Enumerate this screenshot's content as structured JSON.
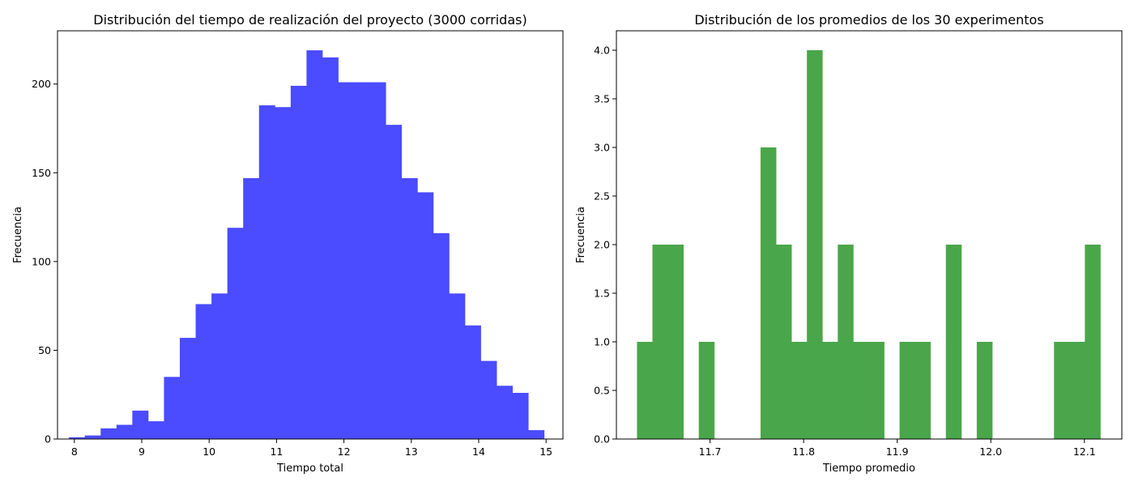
{
  "chart_data": [
    {
      "type": "bar",
      "title": "Distribución del tiempo de realización del proyecto (3000 corridas)",
      "xlabel": "Tiempo total",
      "ylabel": "Frecuencia",
      "xlim": [
        7.75,
        15.25
      ],
      "ylim": [
        0,
        230
      ],
      "bar_color": "#4b4bff",
      "bin_edges": [
        7.92,
        8.155,
        8.39,
        8.625,
        8.86,
        9.095,
        9.33,
        9.565,
        9.8,
        10.035,
        10.27,
        10.505,
        10.74,
        10.975,
        11.21,
        11.445,
        11.68,
        11.915,
        12.15,
        12.385,
        12.62,
        12.855,
        13.09,
        13.325,
        13.56,
        13.795,
        14.03,
        14.265,
        14.5,
        14.735,
        14.97
      ],
      "values": [
        1,
        2,
        6,
        8,
        16,
        10,
        35,
        57,
        76,
        82,
        119,
        147,
        188,
        187,
        199,
        219,
        215,
        201,
        201,
        201,
        177,
        147,
        139,
        116,
        82,
        64,
        44,
        30,
        26,
        5
      ],
      "xticks": [
        8,
        9,
        10,
        11,
        12,
        13,
        14,
        15
      ],
      "xtick_labels": [
        "8",
        "9",
        "10",
        "11",
        "12",
        "13",
        "14",
        "15"
      ],
      "yticks": [
        0,
        50,
        100,
        150,
        200
      ],
      "ytick_labels": [
        "0",
        "50",
        "100",
        "150",
        "200"
      ],
      "grid": false
    },
    {
      "type": "bar",
      "title": "Distribución de los promedios de los 30 experimentos",
      "xlabel": "Tiempo promedio",
      "ylabel": "Frecuencia",
      "xlim": [
        11.6,
        12.14
      ],
      "ylim": [
        0,
        4.2
      ],
      "bar_color": "#4aa64a",
      "bin_edges": [
        11.622,
        11.6385,
        11.655,
        11.6715,
        11.688,
        11.7045,
        11.721,
        11.7375,
        11.754,
        11.7705,
        11.787,
        11.8035,
        11.82,
        11.8365,
        11.853,
        11.8695,
        11.886,
        11.9025,
        11.919,
        11.9355,
        11.952,
        11.9685,
        11.985,
        12.0015,
        12.018,
        12.0345,
        12.051,
        12.0675,
        12.084,
        12.1005,
        12.117
      ],
      "values": [
        1,
        2,
        2,
        0,
        1,
        0,
        0,
        0,
        3,
        2,
        1,
        4,
        1,
        2,
        1,
        1,
        0,
        1,
        1,
        0,
        2,
        0,
        1,
        0,
        0,
        0,
        0,
        1,
        1,
        2
      ],
      "xticks": [
        11.7,
        11.8,
        11.9,
        12.0,
        12.1
      ],
      "xtick_labels": [
        "11.7",
        "11.8",
        "11.9",
        "12.0",
        "12.1"
      ],
      "yticks": [
        0,
        0.5,
        1.0,
        1.5,
        2.0,
        2.5,
        3.0,
        3.5,
        4.0
      ],
      "ytick_labels": [
        "0.0",
        "0.5",
        "1.0",
        "1.5",
        "2.0",
        "2.5",
        "3.0",
        "3.5",
        "4.0"
      ],
      "grid": false
    }
  ]
}
